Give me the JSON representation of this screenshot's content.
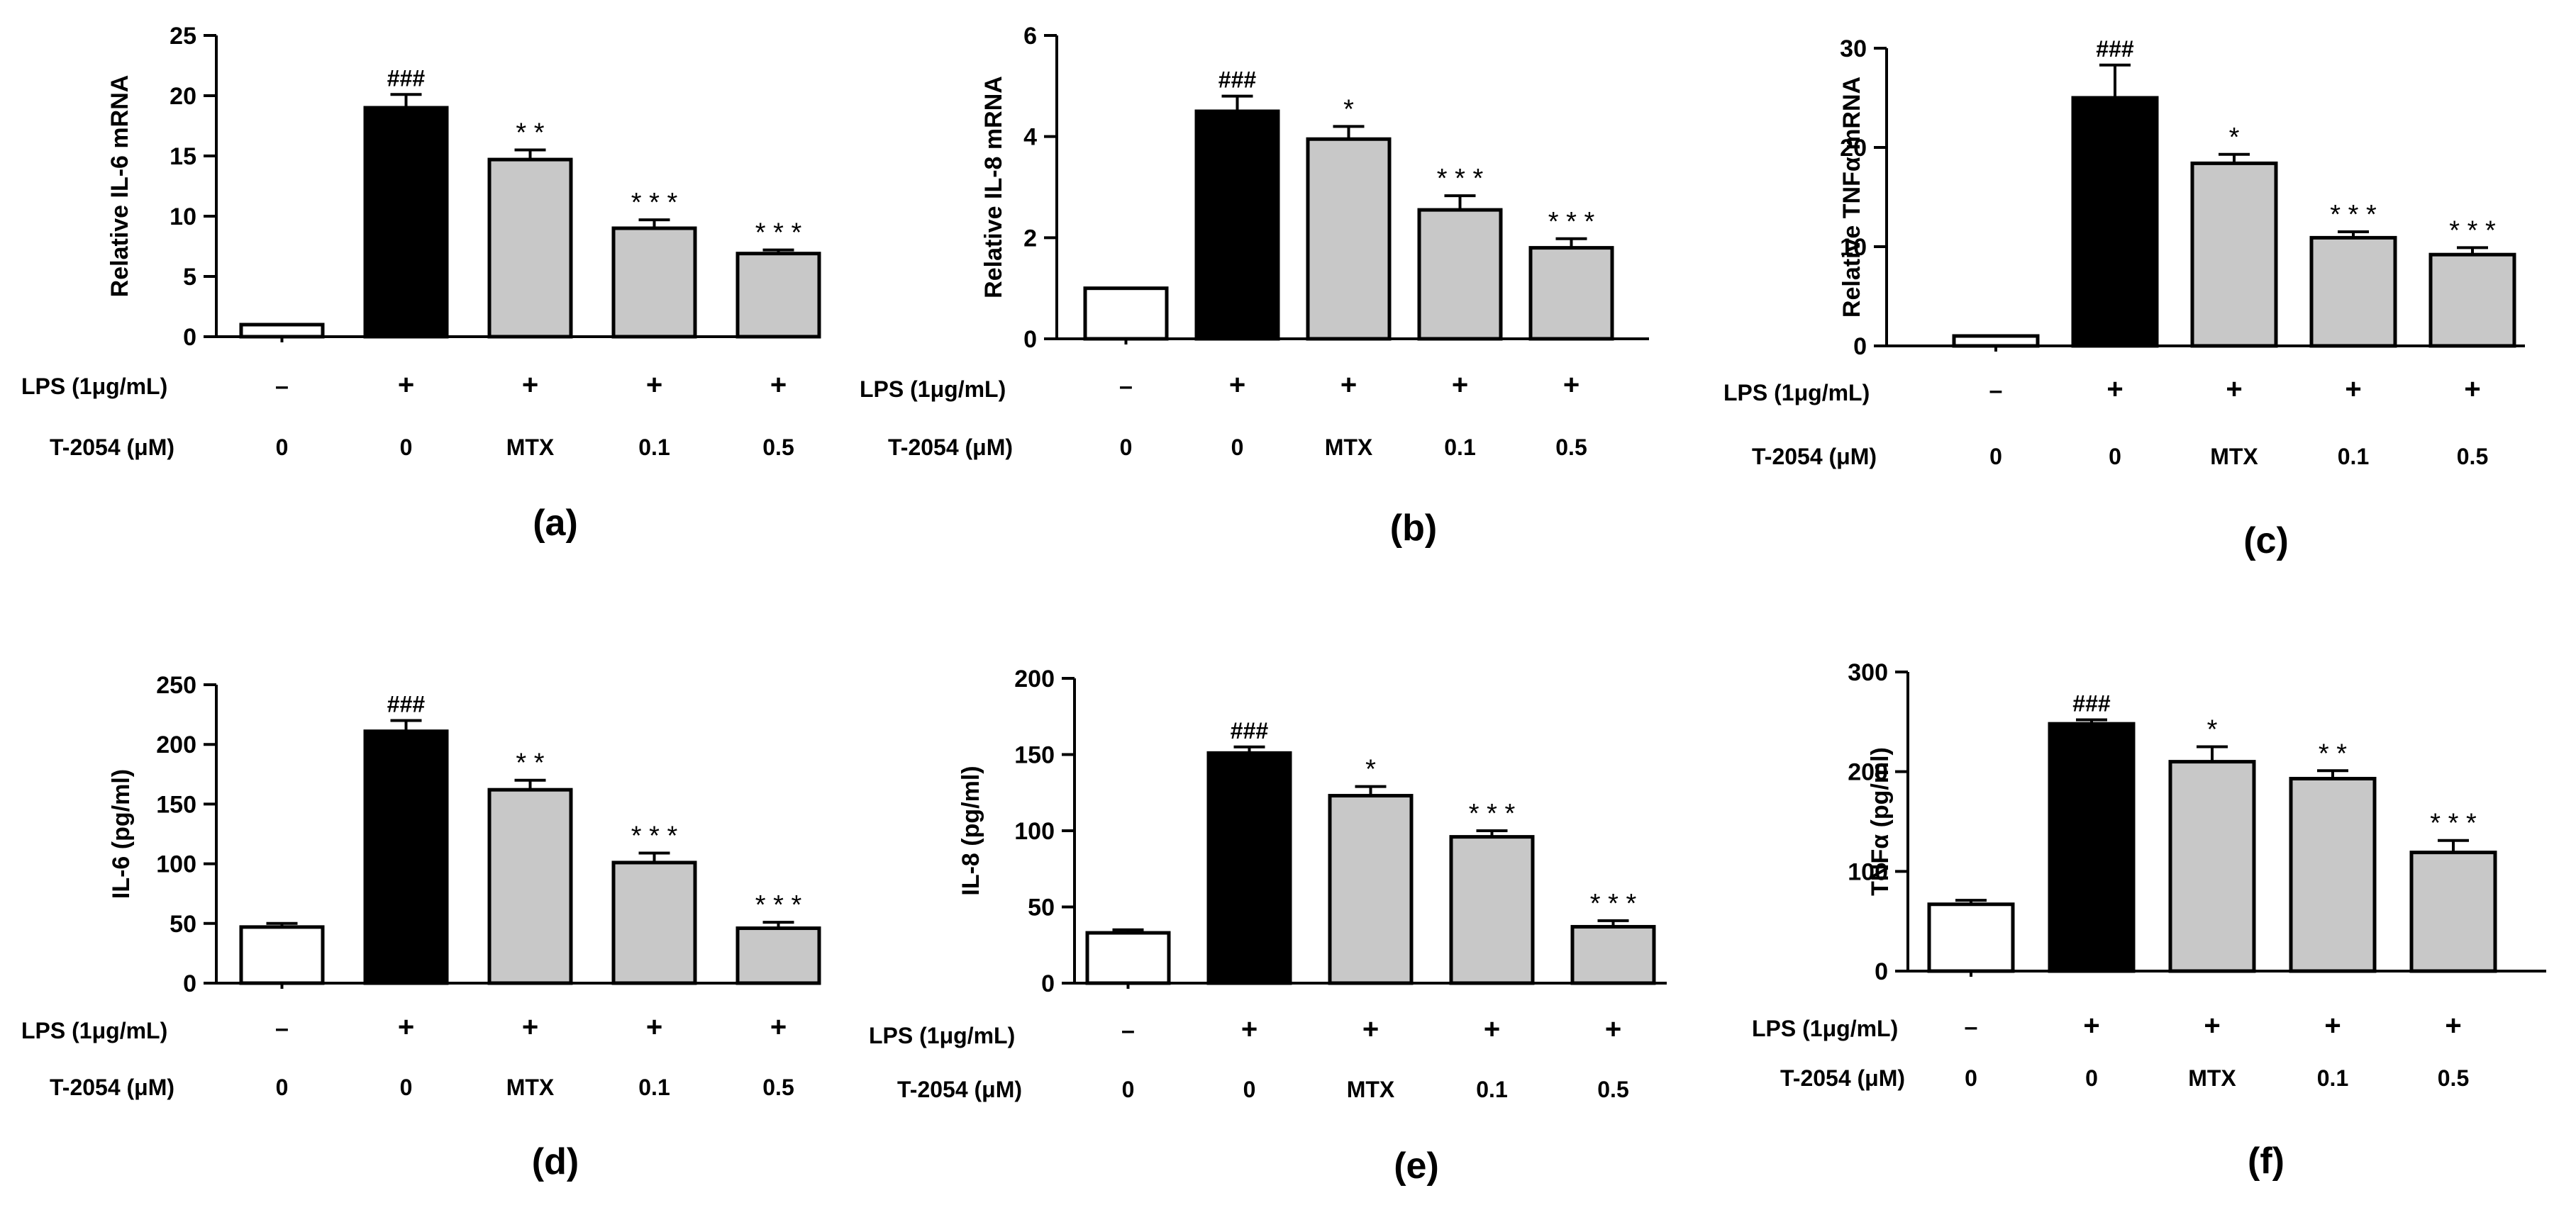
{
  "colors": {
    "control": "#ffffff",
    "lps": "#000000",
    "treated": "#c8c8c8",
    "stroke": "#000000"
  },
  "row_labels": {
    "lps": "LPS (1μg/mL)",
    "t2054": "T-2054 (μM)"
  },
  "chart_data": [
    {
      "id": "a",
      "panel_label": "(a)",
      "type": "bar",
      "title": "",
      "xlabel": "",
      "ylabel": "Relative IL-6 mRNA",
      "ylim": [
        0,
        25
      ],
      "yticks": [
        "0",
        "5",
        "10",
        "15",
        "20",
        "25"
      ],
      "lps": [
        "–",
        "+",
        "+",
        "+",
        "+"
      ],
      "t2054": [
        "0",
        "0",
        "MTX",
        "0.1",
        "0.5"
      ],
      "values": [
        1,
        19,
        14.7,
        9,
        6.9
      ],
      "errors": [
        0,
        1.1,
        0.8,
        0.7,
        0.3
      ],
      "significance": [
        "",
        "###",
        "* *",
        "* * *",
        "* * *"
      ]
    },
    {
      "id": "b",
      "panel_label": "(b)",
      "type": "bar",
      "title": "",
      "xlabel": "",
      "ylabel": "Relative IL-8 mRNA",
      "ylim": [
        0,
        6
      ],
      "yticks": [
        "0",
        "2",
        "4",
        "6"
      ],
      "lps": [
        "–",
        "+",
        "+",
        "+",
        "+"
      ],
      "t2054": [
        "0",
        "0",
        "MTX",
        "0.1",
        "0.5"
      ],
      "values": [
        1,
        4.5,
        3.95,
        2.55,
        1.8
      ],
      "errors": [
        0,
        0.3,
        0.25,
        0.28,
        0.18
      ],
      "significance": [
        "",
        "###",
        "*",
        "* * *",
        "* * *"
      ]
    },
    {
      "id": "c",
      "panel_label": "(c)",
      "type": "bar",
      "title": "",
      "xlabel": "",
      "ylabel": "Relative TNFα mRNA",
      "ylim": [
        0,
        30
      ],
      "yticks": [
        "0",
        "10",
        "20",
        "30"
      ],
      "lps": [
        "–",
        "+",
        "+",
        "+",
        "+"
      ],
      "t2054": [
        "0",
        "0",
        "MTX",
        "0.1",
        "0.5"
      ],
      "values": [
        1,
        25,
        18.4,
        10.9,
        9.2
      ],
      "errors": [
        0,
        3.3,
        0.9,
        0.6,
        0.7
      ],
      "significance": [
        "",
        "###",
        "*",
        "* * *",
        "* * *"
      ]
    },
    {
      "id": "d",
      "panel_label": "(d)",
      "type": "bar",
      "title": "",
      "xlabel": "",
      "ylabel": "IL-6 (pg/ml)",
      "ylim": [
        0,
        250
      ],
      "yticks": [
        "0",
        "50",
        "100",
        "150",
        "200",
        "250"
      ],
      "lps": [
        "–",
        "+",
        "+",
        "+",
        "+"
      ],
      "t2054": [
        "0",
        "0",
        "MTX",
        "0.1",
        "0.5"
      ],
      "values": [
        47,
        211,
        162,
        101,
        46
      ],
      "errors": [
        3,
        9,
        8,
        8,
        5
      ],
      "significance": [
        "",
        "###",
        "* *",
        "* * *",
        "* * *"
      ]
    },
    {
      "id": "e",
      "panel_label": "(e)",
      "type": "bar",
      "title": "",
      "xlabel": "",
      "ylabel": "IL-8 (pg/ml)",
      "ylim": [
        0,
        200
      ],
      "yticks": [
        "0",
        "50",
        "100",
        "150",
        "200"
      ],
      "lps": [
        "–",
        "+",
        "+",
        "+",
        "+"
      ],
      "t2054": [
        "0",
        "0",
        "MTX",
        "0.1",
        "0.5"
      ],
      "values": [
        33,
        151,
        123,
        96,
        37
      ],
      "errors": [
        2,
        4,
        6,
        4,
        4
      ],
      "significance": [
        "",
        "###",
        "*",
        "* * *",
        "* * *"
      ]
    },
    {
      "id": "f",
      "panel_label": "(f)",
      "type": "bar",
      "title": "",
      "xlabel": "",
      "ylabel": "TNFα (pg/ml)",
      "ylim": [
        0,
        300
      ],
      "yticks": [
        "0",
        "100",
        "200",
        "300"
      ],
      "lps": [
        "–",
        "+",
        "+",
        "+",
        "+"
      ],
      "t2054": [
        "0",
        "0",
        "MTX",
        "0.1",
        "0.5"
      ],
      "values": [
        67,
        248,
        210,
        193,
        119
      ],
      "errors": [
        4,
        4,
        15,
        8,
        12
      ],
      "significance": [
        "",
        "###",
        "*",
        "* *",
        "* * *"
      ]
    }
  ]
}
